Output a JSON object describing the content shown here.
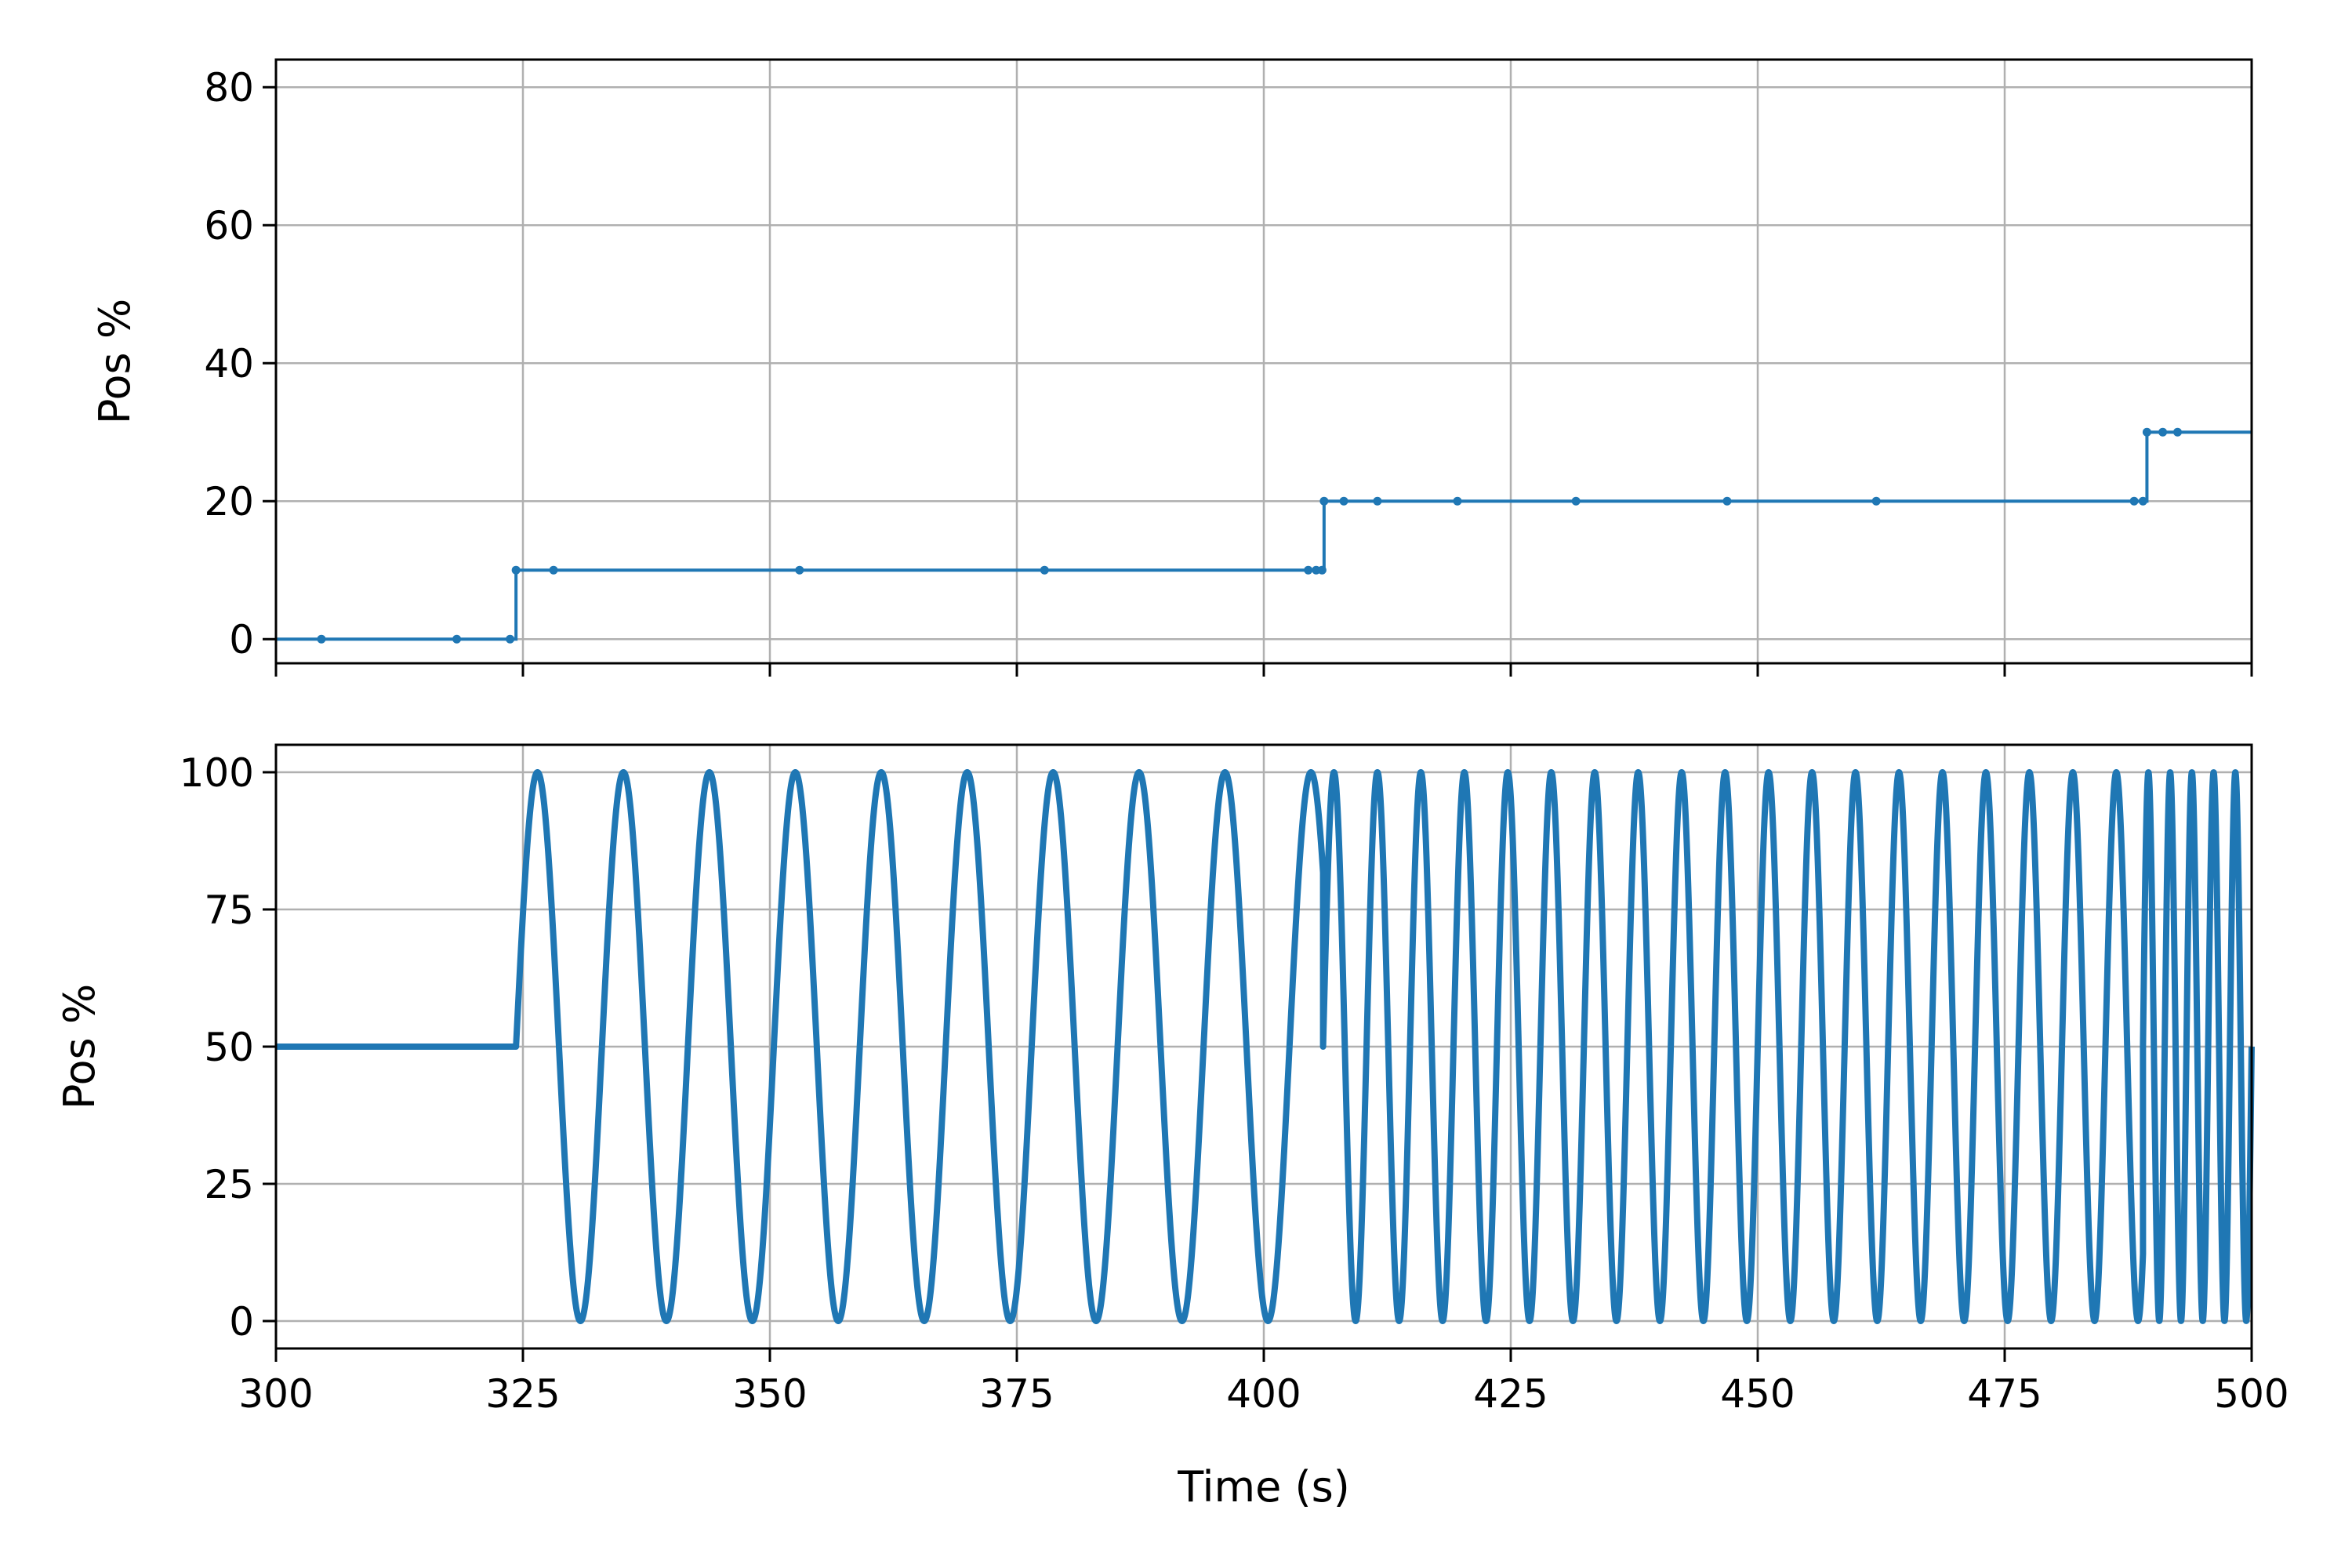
{
  "chart_data": [
    {
      "type": "line",
      "title": "",
      "xlabel": "",
      "ylabel": "Pos %",
      "xlim": [
        300,
        500
      ],
      "ylim": [
        -3.5,
        84
      ],
      "xticks": [
        300,
        325,
        350,
        375,
        400,
        425,
        450,
        475,
        500
      ],
      "yticks": [
        0,
        20,
        40,
        60,
        80
      ],
      "ytick_labels": [
        "0",
        "20",
        "40",
        "60",
        "80"
      ],
      "x_tick_labels_visible": false,
      "grid": true,
      "line_style": "steps-post",
      "color": "#1f77b4",
      "series": [
        {
          "x": [
            300,
            304.6,
            318.3,
            323.7,
            324.3,
            328.1,
            353.0,
            377.8,
            404.5,
            405.3,
            405.9,
            406.1,
            408.1,
            411.5,
            419.6,
            431.6,
            446.9,
            462.0,
            488.1,
            489.0,
            489.4,
            491.0,
            492.5,
            500
          ],
          "y": [
            0,
            0,
            0,
            0,
            10,
            10,
            10,
            10,
            10,
            10,
            10,
            20,
            20,
            20,
            20,
            20,
            20,
            20,
            20,
            20,
            30,
            30,
            30,
            30
          ],
          "markers": [
            false,
            true,
            true,
            true,
            true,
            true,
            true,
            true,
            true,
            true,
            true,
            true,
            true,
            true,
            true,
            true,
            true,
            true,
            true,
            true,
            true,
            true,
            true,
            false
          ]
        }
      ]
    },
    {
      "type": "line",
      "title": "",
      "xlabel": "Time (s)",
      "ylabel": "Pos %",
      "xlim": [
        300,
        500
      ],
      "ylim": [
        -5,
        105
      ],
      "xticks": [
        300,
        325,
        350,
        375,
        400,
        425,
        450,
        475,
        500
      ],
      "xtick_labels": [
        "300",
        "325",
        "350",
        "375",
        "400",
        "425",
        "450",
        "475",
        "500"
      ],
      "yticks": [
        0,
        25,
        50,
        75,
        100
      ],
      "ytick_labels": [
        "0",
        "25",
        "50",
        "75",
        "100"
      ],
      "grid": true,
      "color": "#1f77b4",
      "series": [
        {
          "offset": 50,
          "amplitude": 50,
          "hold_until": 324.3,
          "segments": [
            {
              "start": 324.3,
              "end": 406.0,
              "period": 8.7
            },
            {
              "start": 406.0,
              "end": 489.0,
              "period": 4.4
            },
            {
              "start": 489.0,
              "end": 500.0,
              "period": 2.2
            }
          ]
        }
      ]
    }
  ]
}
